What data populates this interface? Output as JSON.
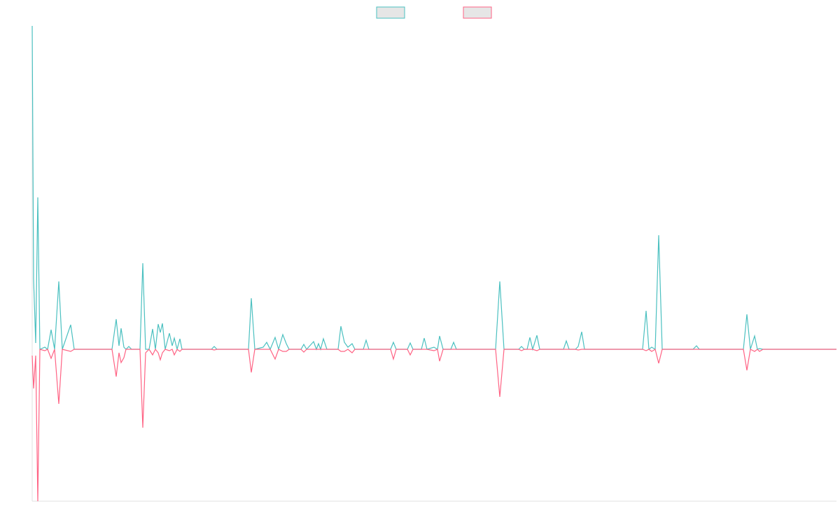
{
  "chart_data": {
    "type": "line",
    "legend": "top",
    "grid": false,
    "xlim": [
      46,
      1195
    ],
    "ylim": [
      -217,
      462
    ],
    "x": [
      46,
      48,
      51,
      54,
      57,
      64,
      68,
      73,
      78,
      84,
      89,
      101,
      106,
      160,
      166,
      170,
      173,
      177,
      180,
      184,
      188,
      200,
      204,
      208,
      213,
      218,
      222,
      226,
      229,
      232,
      236,
      242,
      246,
      249,
      253,
      257,
      260,
      302,
      306,
      310,
      355,
      359,
      364,
      376,
      381,
      386,
      393,
      398,
      404,
      409,
      413,
      430,
      434,
      438,
      448,
      452,
      455,
      458,
      462,
      467,
      483,
      487,
      492,
      497,
      503,
      507,
      519,
      523,
      527,
      558,
      562,
      566,
      582,
      586,
      590,
      602,
      606,
      610,
      620,
      625,
      628,
      633,
      644,
      648,
      652,
      708,
      714,
      720,
      741,
      745,
      749,
      753,
      757,
      761,
      767,
      771,
      805,
      809,
      813,
      822,
      826,
      831,
      835,
      918,
      923,
      927,
      931,
      936,
      941,
      946,
      990,
      995,
      999,
      1062,
      1067,
      1072,
      1078,
      1082,
      1085,
      1090,
      1195
    ],
    "series": [
      {
        "color": "#4bc0c0",
        "values": [
          462,
          100,
          9,
          217,
          0,
          3,
          0,
          28,
          0,
          97,
          0,
          35,
          0,
          0,
          43,
          5,
          30,
          3,
          0,
          4,
          0,
          0,
          123,
          0,
          0,
          29,
          0,
          36,
          24,
          37,
          0,
          23,
          5,
          16,
          0,
          15,
          0,
          0,
          4,
          0,
          0,
          73,
          0,
          3,
          10,
          0,
          17,
          0,
          21,
          8,
          0,
          0,
          7,
          0,
          11,
          0,
          8,
          0,
          15,
          0,
          0,
          33,
          10,
          3,
          8,
          0,
          0,
          13,
          0,
          0,
          10,
          0,
          0,
          9,
          0,
          0,
          16,
          0,
          3,
          0,
          19,
          0,
          0,
          10,
          0,
          0,
          97,
          0,
          0,
          4,
          0,
          0,
          17,
          0,
          20,
          0,
          0,
          12,
          0,
          0,
          4,
          25,
          0,
          0,
          55,
          0,
          3,
          0,
          163,
          0,
          0,
          5,
          0,
          0,
          50,
          0,
          19,
          0,
          1,
          0,
          0
        ]
      },
      {
        "color": "#ff6384",
        "values": [
          -9,
          -56,
          -9,
          -217,
          0,
          -2,
          0,
          -13,
          0,
          -78,
          0,
          -3,
          0,
          0,
          -39,
          -5,
          -19,
          -12,
          0,
          0,
          0,
          0,
          -112,
          -5,
          0,
          -8,
          0,
          -5,
          -15,
          -5,
          0,
          -2,
          0,
          -8,
          0,
          -3,
          0,
          0,
          -1,
          0,
          0,
          -33,
          0,
          0,
          0,
          0,
          -14,
          0,
          -3,
          -3,
          0,
          0,
          -4,
          0,
          0,
          0,
          0,
          0,
          0,
          0,
          0,
          -3,
          -3,
          0,
          -5,
          0,
          0,
          0,
          0,
          0,
          -14,
          0,
          0,
          -8,
          0,
          0,
          0,
          0,
          -2,
          0,
          -17,
          0,
          0,
          0,
          0,
          0,
          -68,
          0,
          0,
          -2,
          0,
          0,
          0,
          0,
          -2,
          0,
          0,
          0,
          0,
          0,
          -1,
          0,
          0,
          0,
          -2,
          0,
          -3,
          0,
          -20,
          0,
          0,
          0,
          0,
          0,
          -30,
          0,
          -3,
          0,
          -3,
          0,
          0
        ]
      }
    ]
  }
}
